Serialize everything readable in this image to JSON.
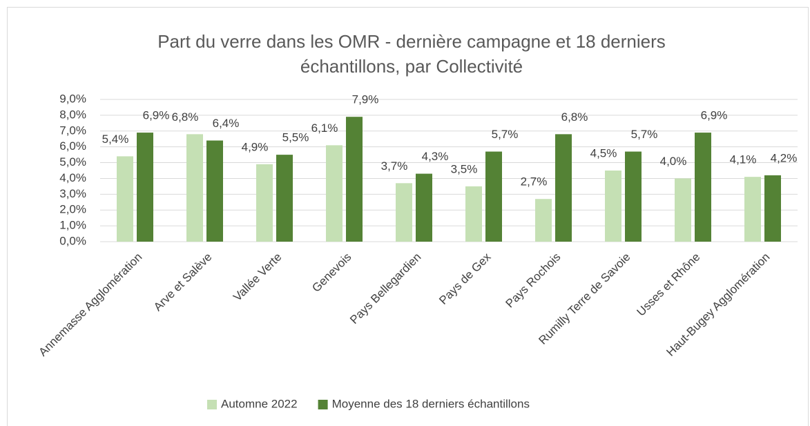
{
  "chart_data": {
    "type": "bar",
    "title": "Part du verre dans les OMR - dernière campagne et 18 derniers échantillons, par Collectivité",
    "categories": [
      "Annemasse Agglomération",
      "Arve et Salève",
      "Vallée Verte",
      "Genevois",
      "Pays Bellegardien",
      "Pays de Gex",
      "Pays Rochois",
      "Rumilly Terre de Savoie",
      "Usses et Rhône",
      "Haut-Bugey Agglomération"
    ],
    "series": [
      {
        "name": "Automne 2022",
        "color": "#c5e0b4",
        "values": [
          5.4,
          6.8,
          4.9,
          6.1,
          3.7,
          3.5,
          2.7,
          4.5,
          4.0,
          4.1
        ],
        "value_labels": [
          "5,4%",
          "6,8%",
          "4,9%",
          "6,1%",
          "3,7%",
          "3,5%",
          "2,7%",
          "4,5%",
          "4,0%",
          "4,1%"
        ]
      },
      {
        "name": "Moyenne des 18 derniers échantillons",
        "color": "#548235",
        "values": [
          6.9,
          6.4,
          5.5,
          7.9,
          4.3,
          5.7,
          6.8,
          5.7,
          6.9,
          4.2
        ],
        "value_labels": [
          "6,9%",
          "6,4%",
          "5,5%",
          "7,9%",
          "4,3%",
          "5,7%",
          "6,8%",
          "5,7%",
          "6,9%",
          "4,2%"
        ]
      }
    ],
    "ylim": [
      0,
      9
    ],
    "yticks": [
      {
        "value": 0,
        "label": "0,0%"
      },
      {
        "value": 1,
        "label": "1,0%"
      },
      {
        "value": 2,
        "label": "2,0%"
      },
      {
        "value": 3,
        "label": "3,0%"
      },
      {
        "value": 4,
        "label": "4,0%"
      },
      {
        "value": 5,
        "label": "5,0%"
      },
      {
        "value": 6,
        "label": "6,0%"
      },
      {
        "value": 7,
        "label": "7,0%"
      },
      {
        "value": 8,
        "label": "8,0%"
      },
      {
        "value": 9,
        "label": "9,0%"
      }
    ],
    "grid": true,
    "legend": "bottom"
  }
}
